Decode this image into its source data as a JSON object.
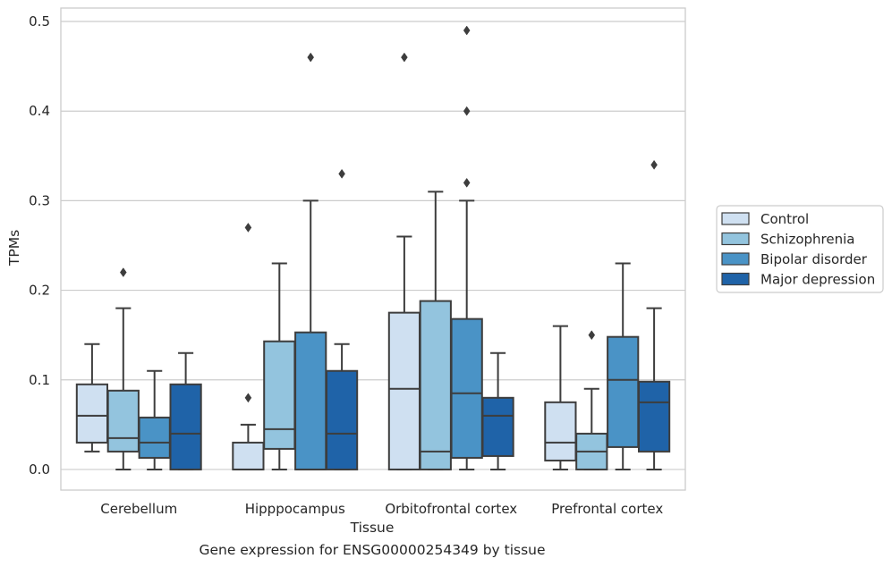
{
  "chart_data": {
    "type": "boxplot",
    "title": "",
    "caption": "Gene expression for ENSG00000254349 by tissue",
    "xlabel": "Tissue",
    "ylabel": "TPMs",
    "ylim": [
      -0.023,
      0.515
    ],
    "yticks": [
      "0.0",
      "0.1",
      "0.2",
      "0.3",
      "0.4",
      "0.5"
    ],
    "grid": "horizontal",
    "legend_position": "center-right, outside plot",
    "categories": [
      "Cerebellum",
      "Hipppocampus",
      "Orbitofrontal cortex",
      "Prefrontal cortex"
    ],
    "series": [
      {
        "name": "Control",
        "color": "#cfe0f1",
        "boxes": [
          {
            "whislo": 0.02,
            "q1": 0.03,
            "med": 0.06,
            "q3": 0.095,
            "whishi": 0.14,
            "fliers": []
          },
          {
            "whislo": 0.0,
            "q1": 0.0,
            "med": 0.0,
            "q3": 0.03,
            "whishi": 0.05,
            "fliers": [
              0.08,
              0.27
            ]
          },
          {
            "whislo": 0.0,
            "q1": 0.0,
            "med": 0.09,
            "q3": 0.175,
            "whishi": 0.26,
            "fliers": [
              0.46
            ]
          },
          {
            "whislo": 0.0,
            "q1": 0.01,
            "med": 0.03,
            "q3": 0.075,
            "whishi": 0.16,
            "fliers": []
          }
        ]
      },
      {
        "name": "Schizophrenia",
        "color": "#93c4de",
        "boxes": [
          {
            "whislo": 0.0,
            "q1": 0.02,
            "med": 0.035,
            "q3": 0.088,
            "whishi": 0.18,
            "fliers": [
              0.22
            ]
          },
          {
            "whislo": 0.0,
            "q1": 0.023,
            "med": 0.045,
            "q3": 0.143,
            "whishi": 0.23,
            "fliers": []
          },
          {
            "whislo": 0.0,
            "q1": 0.0,
            "med": 0.02,
            "q3": 0.188,
            "whishi": 0.31,
            "fliers": []
          },
          {
            "whislo": 0.0,
            "q1": 0.0,
            "med": 0.02,
            "q3": 0.04,
            "whishi": 0.09,
            "fliers": [
              0.15
            ]
          }
        ]
      },
      {
        "name": "Bipolar disorder",
        "color": "#4a93c6",
        "boxes": [
          {
            "whislo": 0.0,
            "q1": 0.013,
            "med": 0.03,
            "q3": 0.058,
            "whishi": 0.11,
            "fliers": []
          },
          {
            "whislo": 0.0,
            "q1": 0.0,
            "med": 0.0,
            "q3": 0.153,
            "whishi": 0.3,
            "fliers": [
              0.46
            ]
          },
          {
            "whislo": 0.0,
            "q1": 0.013,
            "med": 0.085,
            "q3": 0.168,
            "whishi": 0.3,
            "fliers": [
              0.32,
              0.4,
              0.49
            ]
          },
          {
            "whislo": 0.0,
            "q1": 0.025,
            "med": 0.1,
            "q3": 0.148,
            "whishi": 0.23,
            "fliers": []
          }
        ]
      },
      {
        "name": "Major depression",
        "color": "#1f63a8",
        "boxes": [
          {
            "whislo": 0.0,
            "q1": 0.0,
            "med": 0.04,
            "q3": 0.095,
            "whishi": 0.13,
            "fliers": []
          },
          {
            "whislo": 0.0,
            "q1": 0.0,
            "med": 0.04,
            "q3": 0.11,
            "whishi": 0.14,
            "fliers": [
              0.33
            ]
          },
          {
            "whislo": 0.0,
            "q1": 0.015,
            "med": 0.06,
            "q3": 0.08,
            "whishi": 0.13,
            "fliers": []
          },
          {
            "whislo": 0.0,
            "q1": 0.02,
            "med": 0.075,
            "q3": 0.098,
            "whishi": 0.18,
            "fliers": [
              0.34
            ]
          }
        ]
      }
    ]
  }
}
